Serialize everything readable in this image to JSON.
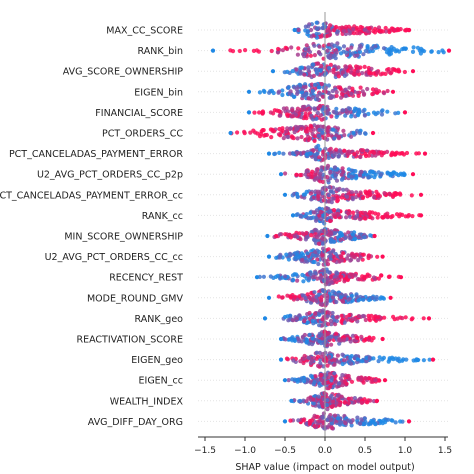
{
  "chart_data": {
    "type": "scatter",
    "subtype": "shap-beeswarm",
    "title": "",
    "xlabel": "SHAP value (impact on model output)",
    "ylabel": "",
    "xlim": [
      -1.55,
      1.55
    ],
    "xticks": [
      -1.5,
      -1.0,
      -0.5,
      0.0,
      0.5,
      1.0,
      1.5
    ],
    "xtick_labels": [
      "−1.5",
      "−1.0",
      "−0.5",
      "0.0",
      "0.5",
      "1.0",
      "1.5"
    ],
    "grid": false,
    "colors": {
      "low": "#1e88e5",
      "high": "#ff0d57",
      "mid": "#7e3fb0",
      "zero_line": "#999999"
    },
    "features": [
      {
        "name": "MAX_CC_SCORE",
        "min": -0.38,
        "max": 1.05,
        "bulge": [
          [
            -0.38,
            0.05
          ],
          [
            -0.25,
            0.55
          ],
          [
            -0.1,
            0.95
          ],
          [
            0.0,
            0.8
          ],
          [
            0.15,
            0.5
          ],
          [
            0.4,
            0.45
          ],
          [
            0.7,
            0.35
          ],
          [
            0.95,
            0.15
          ],
          [
            1.05,
            0.03
          ]
        ]
      },
      {
        "name": "RANK_bin",
        "min": -1.4,
        "max": 1.55,
        "bulge": [
          [
            -1.4,
            0.03
          ],
          [
            -0.9,
            0.1
          ],
          [
            -0.5,
            0.35
          ],
          [
            -0.1,
            0.9
          ],
          [
            0.05,
            1.0
          ],
          [
            0.3,
            0.8
          ],
          [
            0.7,
            0.6
          ],
          [
            1.1,
            0.4
          ],
          [
            1.55,
            0.2
          ]
        ]
      },
      {
        "name": "AVG_SCORE_OWNERSHIP",
        "min": -0.65,
        "max": 1.1,
        "bulge": [
          [
            -0.65,
            0.04
          ],
          [
            -0.4,
            0.25
          ],
          [
            -0.2,
            0.7
          ],
          [
            -0.05,
            1.0
          ],
          [
            0.1,
            0.7
          ],
          [
            0.4,
            0.55
          ],
          [
            0.8,
            0.35
          ],
          [
            1.1,
            0.04
          ]
        ]
      },
      {
        "name": "EIGEN_bin",
        "min": -0.95,
        "max": 0.85,
        "bulge": [
          [
            -0.95,
            0.04
          ],
          [
            -0.6,
            0.3
          ],
          [
            -0.3,
            0.9
          ],
          [
            -0.1,
            1.0
          ],
          [
            0.1,
            0.75
          ],
          [
            0.4,
            0.55
          ],
          [
            0.7,
            0.25
          ],
          [
            0.85,
            0.04
          ]
        ]
      },
      {
        "name": "FINANCIAL_SCORE",
        "min": -0.95,
        "max": 1.0,
        "bulge": [
          [
            -0.95,
            0.04
          ],
          [
            -0.7,
            0.3
          ],
          [
            -0.4,
            0.6
          ],
          [
            -0.1,
            1.0
          ],
          [
            0.1,
            0.6
          ],
          [
            0.4,
            0.45
          ],
          [
            0.8,
            0.2
          ],
          [
            1.0,
            0.03
          ]
        ]
      },
      {
        "name": "PCT_ORDERS_CC",
        "min": -1.18,
        "max": 0.6,
        "bulge": [
          [
            -1.18,
            0.03
          ],
          [
            -0.8,
            0.4
          ],
          [
            -0.4,
            0.7
          ],
          [
            -0.15,
            0.95
          ],
          [
            0.0,
            0.8
          ],
          [
            0.2,
            0.6
          ],
          [
            0.45,
            0.3
          ],
          [
            0.6,
            0.03
          ]
        ]
      },
      {
        "name": "PCT_CANCELADAS_PAYMENT_ERROR",
        "min": -0.7,
        "max": 1.25,
        "bulge": [
          [
            -0.7,
            0.03
          ],
          [
            -0.4,
            0.15
          ],
          [
            -0.15,
            0.4
          ],
          [
            -0.08,
            1.0
          ],
          [
            0.0,
            0.7
          ],
          [
            0.15,
            0.45
          ],
          [
            0.5,
            0.4
          ],
          [
            0.9,
            0.15
          ],
          [
            1.25,
            0.03
          ]
        ]
      },
      {
        "name": "U2_AVG_PCT_ORDERS_CC_p2p",
        "min": -0.55,
        "max": 1.1,
        "bulge": [
          [
            -0.55,
            0.04
          ],
          [
            -0.3,
            0.25
          ],
          [
            -0.05,
            0.9
          ],
          [
            0.05,
            1.0
          ],
          [
            0.3,
            0.6
          ],
          [
            0.7,
            0.35
          ],
          [
            1.1,
            0.04
          ]
        ]
      },
      {
        "name": "PCT_CANCELADAS_PAYMENT_ERROR_cc",
        "min": -0.5,
        "max": 1.2,
        "bulge": [
          [
            -0.5,
            0.04
          ],
          [
            -0.3,
            0.3
          ],
          [
            -0.05,
            0.8
          ],
          [
            0.05,
            1.0
          ],
          [
            0.3,
            0.55
          ],
          [
            0.7,
            0.35
          ],
          [
            1.2,
            0.04
          ]
        ]
      },
      {
        "name": "RANK_cc",
        "min": -0.4,
        "max": 1.2,
        "bulge": [
          [
            -0.4,
            0.04
          ],
          [
            -0.2,
            0.4
          ],
          [
            0.0,
            1.0
          ],
          [
            0.15,
            0.6
          ],
          [
            0.45,
            0.45
          ],
          [
            0.8,
            0.25
          ],
          [
            1.2,
            0.04
          ]
        ]
      },
      {
        "name": "MIN_SCORE_OWNERSHIP",
        "min": -0.72,
        "max": 0.62,
        "bulge": [
          [
            -0.72,
            0.04
          ],
          [
            -0.5,
            0.3
          ],
          [
            -0.2,
            0.65
          ],
          [
            -0.05,
            1.0
          ],
          [
            0.05,
            0.75
          ],
          [
            0.3,
            0.55
          ],
          [
            0.62,
            0.04
          ]
        ]
      },
      {
        "name": "U2_AVG_PCT_ORDERS_CC_cc",
        "min": -0.7,
        "max": 0.72,
        "bulge": [
          [
            -0.7,
            0.04
          ],
          [
            -0.4,
            0.4
          ],
          [
            -0.1,
            0.85
          ],
          [
            0.0,
            1.0
          ],
          [
            0.2,
            0.6
          ],
          [
            0.5,
            0.35
          ],
          [
            0.72,
            0.04
          ]
        ]
      },
      {
        "name": "RECENCY_REST",
        "min": -0.85,
        "max": 0.95,
        "bulge": [
          [
            -0.85,
            0.04
          ],
          [
            -0.5,
            0.3
          ],
          [
            -0.15,
            0.6
          ],
          [
            0.0,
            1.0
          ],
          [
            0.15,
            0.6
          ],
          [
            0.5,
            0.35
          ],
          [
            0.95,
            0.04
          ]
        ]
      },
      {
        "name": "MODE_ROUND_GMV",
        "min": -0.7,
        "max": 0.82,
        "bulge": [
          [
            -0.7,
            0.04
          ],
          [
            -0.4,
            0.35
          ],
          [
            -0.1,
            0.7
          ],
          [
            0.0,
            1.0
          ],
          [
            0.2,
            0.6
          ],
          [
            0.55,
            0.3
          ],
          [
            0.82,
            0.04
          ]
        ]
      },
      {
        "name": "RANK_geo",
        "min": -0.75,
        "max": 1.3,
        "bulge": [
          [
            -0.75,
            0.04
          ],
          [
            -0.45,
            0.3
          ],
          [
            -0.15,
            0.7
          ],
          [
            0.0,
            1.0
          ],
          [
            0.2,
            0.55
          ],
          [
            0.6,
            0.3
          ],
          [
            1.3,
            0.03
          ]
        ]
      },
      {
        "name": "REACTIVATION_SCORE",
        "min": -0.55,
        "max": 0.72,
        "bulge": [
          [
            -0.55,
            0.04
          ],
          [
            -0.3,
            0.4
          ],
          [
            -0.05,
            0.8
          ],
          [
            0.0,
            1.0
          ],
          [
            0.2,
            0.5
          ],
          [
            0.5,
            0.3
          ],
          [
            0.72,
            0.04
          ]
        ]
      },
      {
        "name": "EIGEN_geo",
        "min": -0.55,
        "max": 1.35,
        "bulge": [
          [
            -0.55,
            0.04
          ],
          [
            -0.3,
            0.35
          ],
          [
            -0.05,
            1.0
          ],
          [
            0.1,
            0.7
          ],
          [
            0.4,
            0.45
          ],
          [
            0.8,
            0.25
          ],
          [
            1.35,
            0.03
          ]
        ]
      },
      {
        "name": "EIGEN_cc",
        "min": -0.5,
        "max": 0.75,
        "bulge": [
          [
            -0.5,
            0.04
          ],
          [
            -0.25,
            0.3
          ],
          [
            -0.05,
            0.9
          ],
          [
            0.05,
            1.0
          ],
          [
            0.3,
            0.5
          ],
          [
            0.75,
            0.04
          ]
        ]
      },
      {
        "name": "WEALTH_INDEX",
        "min": -0.42,
        "max": 0.65,
        "bulge": [
          [
            -0.42,
            0.04
          ],
          [
            -0.2,
            0.35
          ],
          [
            -0.05,
            0.9
          ],
          [
            0.05,
            1.0
          ],
          [
            0.25,
            0.55
          ],
          [
            0.65,
            0.04
          ]
        ]
      },
      {
        "name": "AVG_DIFF_DAY_ORG",
        "min": -0.5,
        "max": 1.05,
        "bulge": [
          [
            -0.5,
            0.04
          ],
          [
            -0.25,
            0.3
          ],
          [
            -0.05,
            0.9
          ],
          [
            0.05,
            1.0
          ],
          [
            0.3,
            0.55
          ],
          [
            0.7,
            0.3
          ],
          [
            1.05,
            0.03
          ]
        ]
      }
    ]
  }
}
